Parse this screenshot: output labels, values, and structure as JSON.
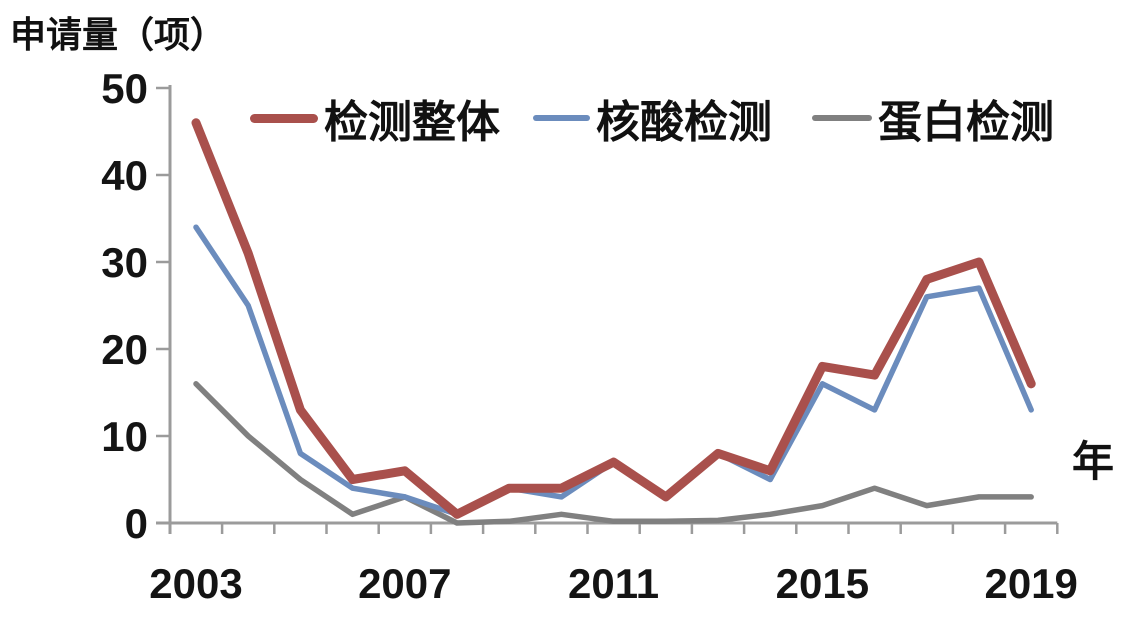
{
  "chart_data": {
    "type": "line",
    "title": "申请量（项）",
    "xlabel": "年",
    "ylabel": "申请量（项）",
    "x": [
      2003,
      2004,
      2005,
      2006,
      2007,
      2008,
      2009,
      2010,
      2011,
      2012,
      2013,
      2014,
      2015,
      2016,
      2017,
      2018,
      2019
    ],
    "x_tick_labels": [
      "2003",
      "2007",
      "2011",
      "2015",
      "2019"
    ],
    "y_ticks": [
      0,
      10,
      20,
      30,
      40,
      50
    ],
    "ylim": [
      0,
      50
    ],
    "grid": false,
    "legend_position": "top",
    "axis_color": "#9b9b9b",
    "text_color": "#141414",
    "series": [
      {
        "name": "检测整体",
        "color": "#a9504c",
        "values": [
          46,
          31,
          13,
          5,
          6,
          1,
          4,
          4,
          7,
          3,
          8,
          6,
          18,
          17,
          28,
          30,
          16
        ]
      },
      {
        "name": "核酸检测",
        "color": "#6b8cbd",
        "values": [
          34,
          25,
          8,
          4,
          3,
          1,
          4,
          3,
          7,
          3,
          8,
          5,
          16,
          13,
          26,
          27,
          13
        ]
      },
      {
        "name": "蛋白检测",
        "color": "#808080",
        "values": [
          16,
          10,
          5,
          1,
          3,
          0,
          0.2,
          1,
          0.2,
          0.2,
          0.3,
          1,
          2,
          4,
          2,
          3,
          3
        ]
      }
    ]
  }
}
